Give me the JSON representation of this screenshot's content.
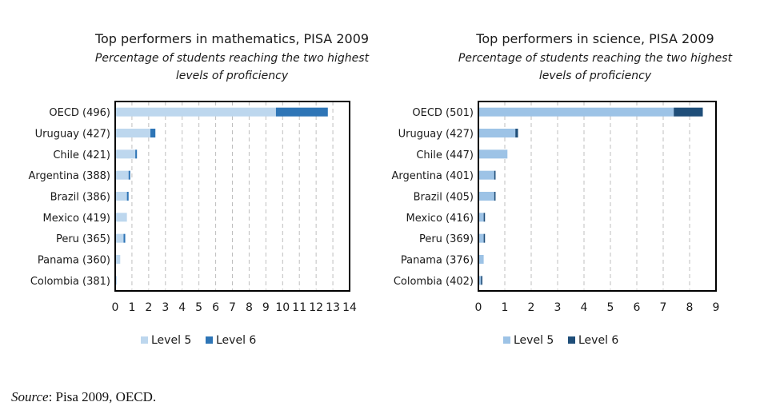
{
  "chart_data": [
    {
      "type": "bar",
      "orientation": "horizontal",
      "stacked": true,
      "title": "Top performers  in mathematics, PISA 2009",
      "subtitle_line1": "Percentage of students reaching the two highest",
      "subtitle_line2": "levels of proficiency",
      "categories": [
        "OECD (496)",
        "Uruguay (427)",
        "Chile (421)",
        "Argentina (388)",
        "Brazil (386)",
        "Mexico (419)",
        "Peru (365)",
        "Panama (360)",
        "Colombia (381)"
      ],
      "series": [
        {
          "name": "Level 5",
          "color": "#bdd7ee",
          "values": [
            9.6,
            2.1,
            1.2,
            0.8,
            0.7,
            0.7,
            0.5,
            0.3,
            0.1
          ]
        },
        {
          "name": "Level 6",
          "color": "#2e75b6",
          "values": [
            3.1,
            0.3,
            0.1,
            0.1,
            0.1,
            0.0,
            0.1,
            0.0,
            0.0
          ]
        }
      ],
      "xlim": [
        0,
        14
      ],
      "xticks": [
        "0",
        "1",
        "2",
        "3",
        "4",
        "5",
        "6",
        "7",
        "8",
        "9",
        "10",
        "11",
        "12",
        "13",
        "14"
      ],
      "grid": "vertical dashed",
      "legend": "bottom"
    },
    {
      "type": "bar",
      "orientation": "horizontal",
      "stacked": true,
      "title": "Top performers  in science, PISA 2009",
      "subtitle_line1": "Percentage of students reaching the two highest",
      "subtitle_line2": "levels of proficiency",
      "categories": [
        "OECD (501)",
        "Uruguay (427)",
        "Chile (447)",
        "Argentina (401)",
        "Brazil (405)",
        "Mexico (416)",
        "Peru (369)",
        "Panama (376)",
        "Colombia (402)"
      ],
      "series": [
        {
          "name": "Level 5",
          "color": "#9dc3e6",
          "values": [
            7.4,
            1.4,
            1.1,
            0.6,
            0.6,
            0.2,
            0.2,
            0.2,
            0.1
          ]
        },
        {
          "name": "Level 6",
          "color": "#1f4e79",
          "values": [
            1.1,
            0.1,
            0.0,
            0.05,
            0.05,
            0.05,
            0.05,
            0.0,
            0.05
          ]
        }
      ],
      "xlim": [
        0,
        9
      ],
      "xticks": [
        "0",
        "1",
        "2",
        "3",
        "4",
        "5",
        "6",
        "7",
        "8",
        "9"
      ],
      "grid": "vertical dashed",
      "legend": "bottom"
    }
  ],
  "source": {
    "label": "Source",
    "text": ": Pisa 2009, OECD."
  }
}
